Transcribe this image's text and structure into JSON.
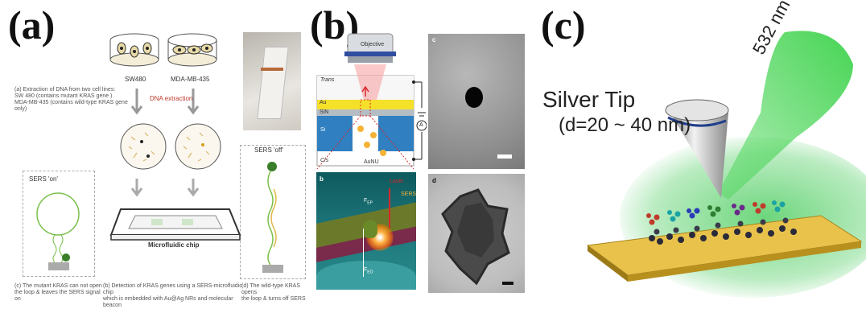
{
  "panel_a": {
    "letter": "(a)",
    "cell_line_1": "SW480",
    "cell_line_2": "MDA-MB-435",
    "step_a_text": [
      "(a) Extraction of DNA from two cell lines:",
      "SW 480 (contains mutant KRAS gene )",
      "MDA-MB-435 (contains wild-type KRAS gene only)"
    ],
    "dna_extraction": "DNA extraction",
    "sers_on": "SERS 'on'",
    "sers_off": "SERS 'off'",
    "chip_label": "Microfluidic chip",
    "step_c_text": [
      "(c) The mutant KRAS can not open",
      "the loop & leaves the SERS signal on"
    ],
    "step_b_text": [
      "(b) Detection of KRAS genes using a SERS-microfluidic chip",
      "which is embedded with Au@Ag NRs and molecular beacon"
    ],
    "step_d_text": [
      "(d) The wild-type KRAS opens",
      "the loop & turns off SERS"
    ]
  },
  "panel_b": {
    "letter": "(b)",
    "objective": "Objective",
    "trans": "Trans",
    "au": "Au",
    "sin": "SiN",
    "si": "Si",
    "cis": "Cis",
    "aunu": "AuNU",
    "ammeter": "A",
    "sub_c": "c",
    "sub_b": "b",
    "sub_d": "d",
    "laser": "Laser",
    "sers": "SERS",
    "f_ep": "F",
    "f_ep_sub": "EP",
    "f_eo": "F",
    "f_eo_sub": "EO"
  },
  "panel_c": {
    "letter": "(c)",
    "silver_tip": "Silver Tip",
    "tip_size": "(d=20 ~ 40 nm)",
    "wavelength": "532 nm"
  },
  "colors": {
    "gold": "#e8c24a",
    "laser_green": "#3cd24a",
    "sin_blue": "#2f7fc1",
    "au_yellow": "#f5e12a"
  }
}
